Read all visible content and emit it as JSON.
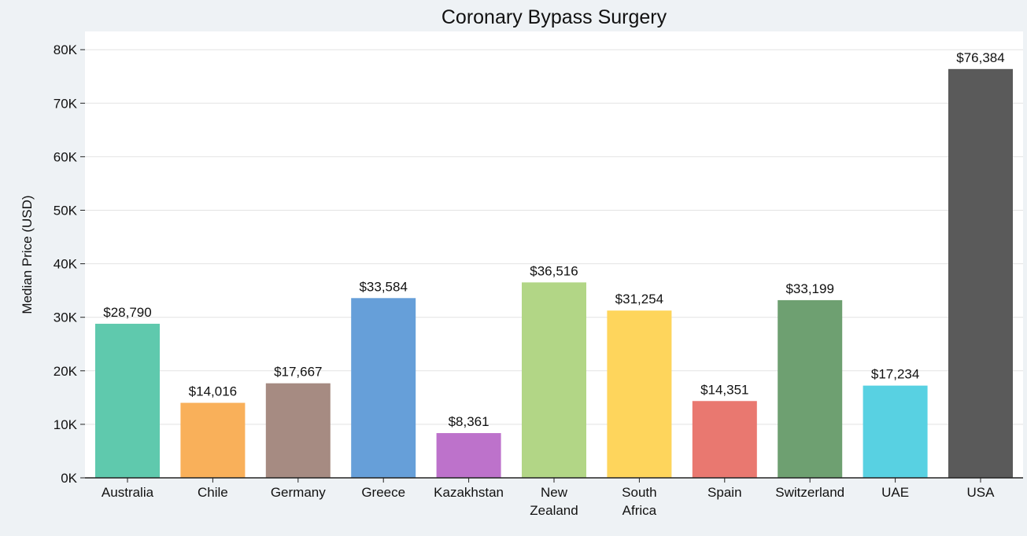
{
  "chart_data": {
    "type": "bar",
    "title": "Coronary Bypass Surgery",
    "xlabel": "",
    "ylabel": "Median Price (USD)",
    "ylim": [
      0,
      83000
    ],
    "yticks": [
      0,
      10000,
      20000,
      30000,
      40000,
      50000,
      60000,
      70000,
      80000
    ],
    "ytick_labels": [
      "0K",
      "10K",
      "20K",
      "30K",
      "40K",
      "50K",
      "60K",
      "70K",
      "80K"
    ],
    "grid": true,
    "categories": [
      [
        "Australia"
      ],
      [
        "Chile"
      ],
      [
        "Germany"
      ],
      [
        "Greece"
      ],
      [
        "Kazakhstan"
      ],
      [
        "New",
        "Zealand"
      ],
      [
        "South",
        "Africa"
      ],
      [
        "Spain"
      ],
      [
        "Switzerland"
      ],
      [
        "UAE"
      ],
      [
        "USA"
      ]
    ],
    "values": [
      28790,
      14016,
      17667,
      33584,
      8361,
      36516,
      31254,
      14351,
      33199,
      17234,
      76384
    ],
    "data_labels": [
      "$28,790",
      "$14,016",
      "$17,667",
      "$33,584",
      "$8,361",
      "$36,516",
      "$31,254",
      "$14,351",
      "$33,199",
      "$17,234",
      "$76,384"
    ],
    "colors": [
      "#5fc9ad",
      "#f9b05a",
      "#a68b82",
      "#669fd9",
      "#bd72cb",
      "#b2d686",
      "#fed55c",
      "#e97870",
      "#6ea071",
      "#58d1e2",
      "#5a5a5a"
    ]
  }
}
